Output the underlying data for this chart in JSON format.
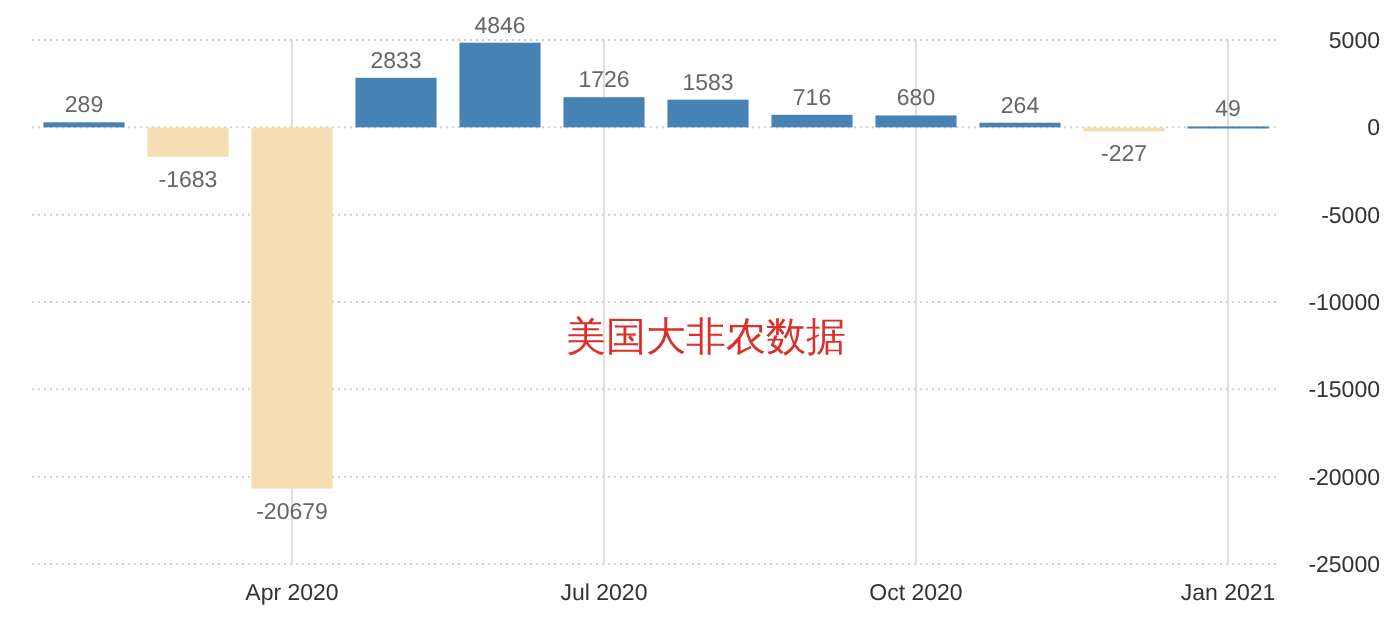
{
  "chart_data": {
    "type": "bar",
    "categories": [
      null,
      null,
      "Apr 2020",
      null,
      null,
      "Jul 2020",
      null,
      null,
      "Oct 2020",
      null,
      null,
      "Jan 2021"
    ],
    "values": [
      289,
      -1683,
      -20679,
      2833,
      4846,
      1726,
      1583,
      716,
      680,
      264,
      -227,
      49
    ],
    "colors": [
      "#4682b4",
      "#f5deb3",
      "#f5deb3",
      "#4682b4",
      "#4682b4",
      "#4682b4",
      "#4682b4",
      "#4682b4",
      "#4682b4",
      "#4682b4",
      "#f5deb3",
      "#4682b4"
    ],
    "ylim": [
      -25000,
      5000
    ],
    "yticks": [
      -25000,
      -20000,
      -15000,
      -10000,
      -5000,
      0,
      5000
    ],
    "grid": true,
    "data_labels": true,
    "annotations": [
      "美国大非农数据"
    ]
  }
}
